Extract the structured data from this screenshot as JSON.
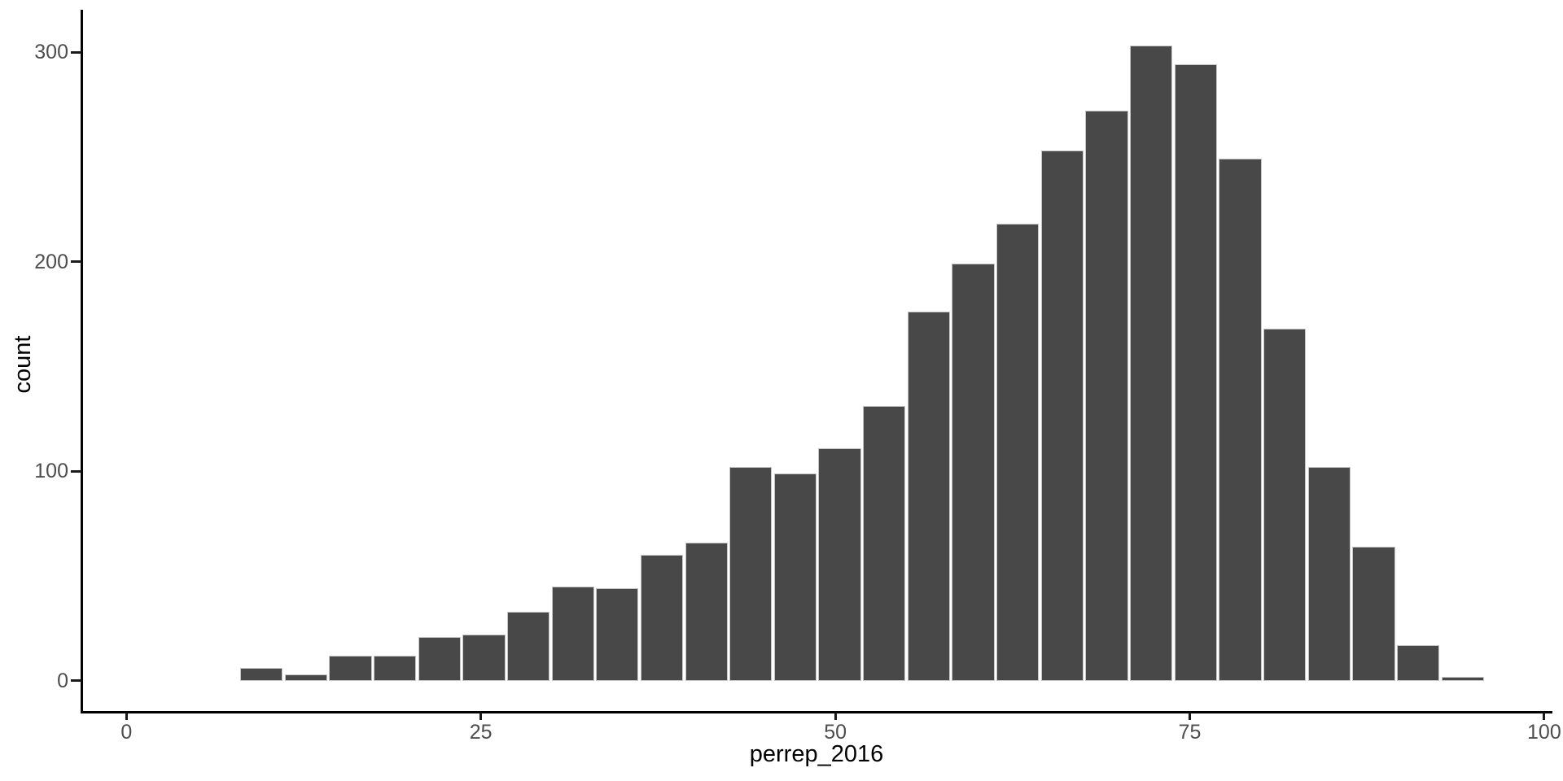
{
  "chart_data": {
    "type": "bar",
    "subtype": "histogram",
    "title": "",
    "xlabel": "perrep_2016",
    "ylabel": "count",
    "x_ticks": [
      0,
      25,
      50,
      75,
      100
    ],
    "y_ticks": [
      0,
      100,
      200,
      300
    ],
    "xlim": [
      -3.2,
      100.6
    ],
    "ylim": [
      0,
      319
    ],
    "grid": false,
    "legend_position": "none",
    "bin_start": 7.96,
    "bin_width": 3.138,
    "counts": [
      6,
      3,
      12,
      12,
      21,
      22,
      33,
      45,
      44,
      60,
      66,
      102,
      99,
      111,
      131,
      176,
      199,
      218,
      253,
      272,
      303,
      294,
      249,
      168,
      102,
      64,
      17,
      2
    ],
    "colors": {
      "bar_fill": "#484848",
      "bar_border": "#c6c6c6",
      "axis_line": "#000000",
      "tick_mark": "#1a1a1a",
      "tick_label": "#4d4d4d",
      "axis_title": "#000000",
      "background": "#ffffff"
    }
  }
}
